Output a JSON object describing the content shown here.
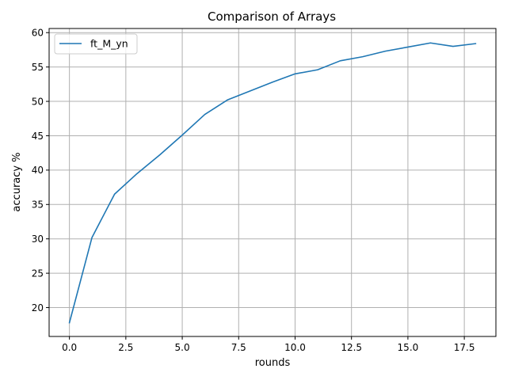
{
  "chart_data": {
    "type": "line",
    "title": "Comparison of Arrays",
    "xlabel": "rounds",
    "ylabel": "accuracy %",
    "xlim": [
      -0.9,
      18.9
    ],
    "ylim": [
      15.8,
      60.6
    ],
    "xticks": [
      0.0,
      2.5,
      5.0,
      7.5,
      10.0,
      12.5,
      15.0,
      17.5
    ],
    "xtick_labels": [
      "0.0",
      "2.5",
      "5.0",
      "7.5",
      "10.0",
      "12.5",
      "15.0",
      "17.5"
    ],
    "yticks": [
      20,
      25,
      30,
      35,
      40,
      45,
      50,
      55,
      60
    ],
    "ytick_labels": [
      "20",
      "25",
      "30",
      "35",
      "40",
      "45",
      "50",
      "55",
      "60"
    ],
    "grid": true,
    "legend_position": "upper-left",
    "series": [
      {
        "name": "ft_M_yn",
        "color": "#1f77b4",
        "x": [
          0,
          1,
          2,
          3,
          4,
          5,
          6,
          7,
          8,
          9,
          10,
          11,
          12,
          13,
          14,
          15,
          16,
          17,
          18
        ],
        "y": [
          17.8,
          30.2,
          36.5,
          39.5,
          42.2,
          45.1,
          48.1,
          50.2,
          51.5,
          52.8,
          54.0,
          54.6,
          55.9,
          56.5,
          57.3,
          57.9,
          58.5,
          58.0,
          58.4
        ]
      }
    ]
  }
}
